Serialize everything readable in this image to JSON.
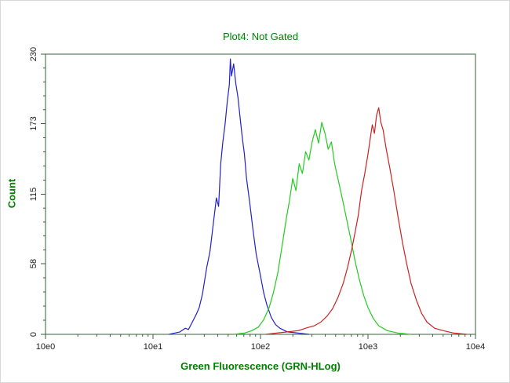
{
  "chart_data": {
    "type": "line",
    "subtype": "flow-cytometry-histogram-overlay",
    "title": "Plot4:  Not Gated",
    "xlabel": "Green Fluorescence (GRN-HLog)",
    "ylabel": "Count",
    "x_scale": "log10",
    "xlim_log10": [
      0,
      4
    ],
    "ylim": [
      0,
      230
    ],
    "grid": "off",
    "legend": "none",
    "axis_color": "#3a5f3a",
    "tick_label_color": "#1c1c1c",
    "label_color": "#008000",
    "x_ticks": [
      {
        "log10": 0,
        "label": "10e0"
      },
      {
        "log10": 1,
        "label": "10e1"
      },
      {
        "log10": 2,
        "label": "10e2"
      },
      {
        "log10": 3,
        "label": "10e3"
      },
      {
        "log10": 4,
        "label": "10e4"
      }
    ],
    "y_ticks": [
      {
        "value": 0,
        "label": "0"
      },
      {
        "value": 58,
        "label": "58"
      },
      {
        "value": 115,
        "label": "115"
      },
      {
        "value": 173,
        "label": "173"
      },
      {
        "value": 230,
        "label": "230"
      }
    ],
    "series": [
      {
        "name": "blue-population",
        "color": "#2121cc",
        "peak_log10": 1.72,
        "peak_count": 226,
        "points": [
          [
            1.15,
            0
          ],
          [
            1.2,
            1
          ],
          [
            1.25,
            2
          ],
          [
            1.3,
            5
          ],
          [
            1.33,
            4
          ],
          [
            1.36,
            9
          ],
          [
            1.4,
            16
          ],
          [
            1.43,
            22
          ],
          [
            1.46,
            33
          ],
          [
            1.5,
            55
          ],
          [
            1.53,
            68
          ],
          [
            1.56,
            90
          ],
          [
            1.59,
            112
          ],
          [
            1.61,
            105
          ],
          [
            1.63,
            140
          ],
          [
            1.65,
            158
          ],
          [
            1.67,
            172
          ],
          [
            1.69,
            190
          ],
          [
            1.71,
            205
          ],
          [
            1.72,
            226
          ],
          [
            1.73,
            212
          ],
          [
            1.75,
            222
          ],
          [
            1.77,
            206
          ],
          [
            1.79,
            195
          ],
          [
            1.81,
            178
          ],
          [
            1.83,
            162
          ],
          [
            1.85,
            148
          ],
          [
            1.87,
            128
          ],
          [
            1.9,
            108
          ],
          [
            1.93,
            86
          ],
          [
            1.96,
            66
          ],
          [
            2.0,
            48
          ],
          [
            2.03,
            34
          ],
          [
            2.06,
            24
          ],
          [
            2.1,
            14
          ],
          [
            2.14,
            8
          ],
          [
            2.18,
            5
          ],
          [
            2.25,
            2
          ],
          [
            2.35,
            1
          ],
          [
            2.45,
            0
          ]
        ]
      },
      {
        "name": "green-population",
        "color": "#21cc21",
        "peak_log10": 2.57,
        "peak_count": 174,
        "points": [
          [
            1.75,
            0
          ],
          [
            1.85,
            1
          ],
          [
            1.92,
            3
          ],
          [
            1.98,
            6
          ],
          [
            2.03,
            12
          ],
          [
            2.08,
            22
          ],
          [
            2.12,
            34
          ],
          [
            2.16,
            50
          ],
          [
            2.2,
            72
          ],
          [
            2.24,
            95
          ],
          [
            2.27,
            110
          ],
          [
            2.3,
            128
          ],
          [
            2.33,
            118
          ],
          [
            2.36,
            140
          ],
          [
            2.39,
            132
          ],
          [
            2.42,
            150
          ],
          [
            2.45,
            143
          ],
          [
            2.48,
            158
          ],
          [
            2.51,
            168
          ],
          [
            2.54,
            157
          ],
          [
            2.57,
            174
          ],
          [
            2.6,
            165
          ],
          [
            2.63,
            152
          ],
          [
            2.66,
            158
          ],
          [
            2.69,
            140
          ],
          [
            2.72,
            128
          ],
          [
            2.76,
            112
          ],
          [
            2.8,
            95
          ],
          [
            2.84,
            78
          ],
          [
            2.88,
            60
          ],
          [
            2.92,
            45
          ],
          [
            2.96,
            32
          ],
          [
            3.0,
            22
          ],
          [
            3.05,
            13
          ],
          [
            3.1,
            7
          ],
          [
            3.18,
            3
          ],
          [
            3.28,
            1
          ],
          [
            3.4,
            0
          ]
        ]
      },
      {
        "name": "red-population",
        "color": "#cc2121",
        "peak_log10": 3.1,
        "peak_count": 186,
        "points": [
          [
            2.05,
            0
          ],
          [
            2.15,
            1
          ],
          [
            2.25,
            2
          ],
          [
            2.35,
            3
          ],
          [
            2.42,
            5
          ],
          [
            2.5,
            7
          ],
          [
            2.56,
            10
          ],
          [
            2.62,
            15
          ],
          [
            2.67,
            21
          ],
          [
            2.72,
            30
          ],
          [
            2.77,
            42
          ],
          [
            2.81,
            55
          ],
          [
            2.85,
            70
          ],
          [
            2.88,
            84
          ],
          [
            2.91,
            98
          ],
          [
            2.94,
            118
          ],
          [
            2.97,
            132
          ],
          [
            3.0,
            148
          ],
          [
            3.02,
            160
          ],
          [
            3.04,
            172
          ],
          [
            3.06,
            165
          ],
          [
            3.08,
            180
          ],
          [
            3.1,
            186
          ],
          [
            3.12,
            174
          ],
          [
            3.14,
            168
          ],
          [
            3.17,
            152
          ],
          [
            3.2,
            138
          ],
          [
            3.24,
            118
          ],
          [
            3.28,
            96
          ],
          [
            3.32,
            76
          ],
          [
            3.36,
            58
          ],
          [
            3.4,
            42
          ],
          [
            3.45,
            28
          ],
          [
            3.5,
            17
          ],
          [
            3.55,
            10
          ],
          [
            3.62,
            5
          ],
          [
            3.7,
            3
          ],
          [
            3.8,
            1
          ],
          [
            3.92,
            0
          ]
        ]
      }
    ]
  }
}
